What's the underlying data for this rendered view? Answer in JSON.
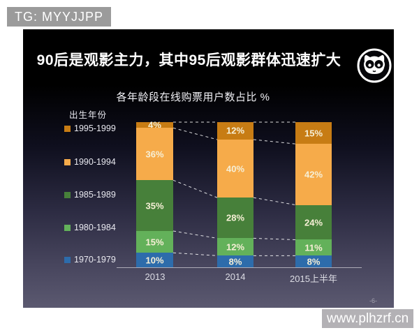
{
  "badges": {
    "tg": "TG: MYYJJPP",
    "watermark": "www.plhzrf.cn"
  },
  "slide": {
    "title": "90后是观影主力，其中95后观影群体迅速扩大",
    "page_number": "-6-",
    "logo_icon": "maoyan-cat-logo"
  },
  "chart_data": {
    "type": "bar",
    "stacked": true,
    "title": "各年龄段在线购票用户数占比 %",
    "legend_title": "出生年份",
    "legend_position": "left",
    "value_suffix": "%",
    "categories": [
      "2013",
      "2014",
      "2015上半年"
    ],
    "series": [
      {
        "name": "1995-1999",
        "color": "#c77c14",
        "values": [
          4,
          12,
          15
        ]
      },
      {
        "name": "1990-1994",
        "color": "#f6ab4a",
        "values": [
          36,
          40,
          42
        ]
      },
      {
        "name": "1985-1989",
        "color": "#47803a",
        "values": [
          35,
          28,
          24
        ]
      },
      {
        "name": "1980-1984",
        "color": "#63b15a",
        "values": [
          15,
          12,
          11
        ]
      },
      {
        "name": "1970-1979",
        "color": "#2d6cab",
        "values": [
          10,
          8,
          8
        ]
      }
    ],
    "ylim": [
      0,
      100
    ],
    "gridlines": false,
    "connector_lines": "dashed-white-between-stack-boundaries"
  }
}
